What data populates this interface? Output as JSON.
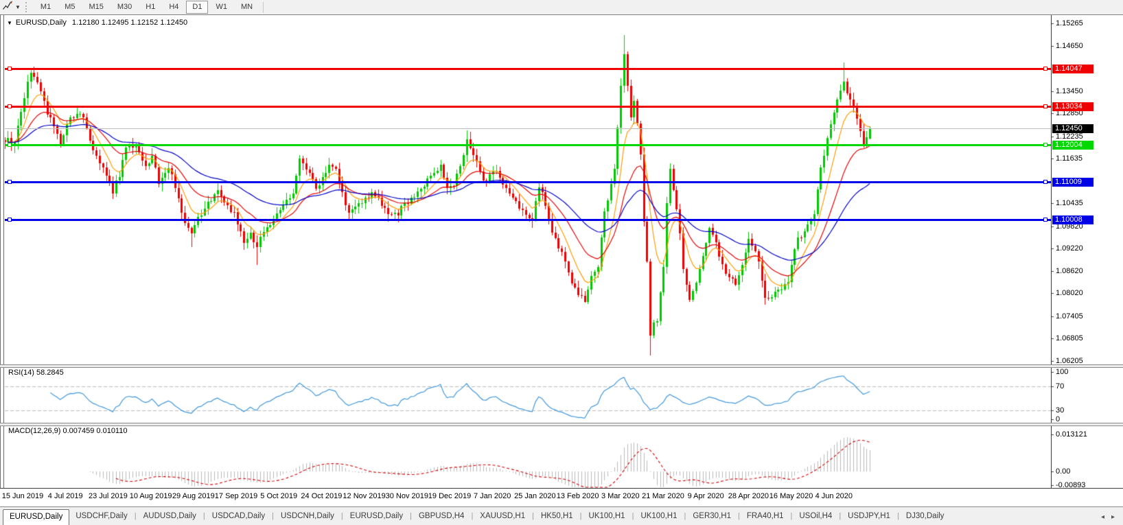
{
  "toolbar": {
    "timeframes": [
      "M1",
      "M5",
      "M15",
      "M30",
      "H1",
      "H4",
      "D1",
      "W1",
      "MN"
    ],
    "active_timeframe": "D1",
    "tool_icon": "drawing-cursor-tool"
  },
  "chart": {
    "title": "EURUSD,Daily",
    "ohlc_text": "1.12180 1.12495 1.12152 1.12450"
  },
  "rsi_panel": {
    "label": "RSI(14) 58.2845"
  },
  "macd_panel": {
    "label": "MACD(12,26,9) 0.007459 0.010110"
  },
  "tab_bar": {
    "tabs": [
      "EURUSD,Daily",
      "USDCHF,Daily",
      "AUDUSD,Daily",
      "USDCAD,Daily",
      "USDCNH,Daily",
      "EURUSD,Daily",
      "GBPUSD,H4",
      "XAUUSD,H1",
      "HK50,H1",
      "UK100,H1",
      "UK100,H1",
      "GER30,H1",
      "FRA40,H1",
      "USOil,H4",
      "USDJPY,H1",
      "DJ30,Daily"
    ],
    "active_index": 0,
    "scroll_left": "◂",
    "scroll_right": "▸"
  },
  "chart_data": {
    "type": "candlestick",
    "symbol": "EURUSD",
    "timeframe": "Daily",
    "last_candle": {
      "open": 1.1218,
      "high": 1.12495,
      "low": 1.12152,
      "close": 1.1245
    },
    "price_axis_ticks": [
      "1.15265",
      "1.14650",
      "1.13450",
      "1.12850",
      "1.12235",
      "1.11635",
      "1.10435",
      "1.09820",
      "1.09220",
      "1.08620",
      "1.08020",
      "1.07405",
      "1.06805",
      "1.06205"
    ],
    "visible_price_range": [
      1.06205,
      1.15265
    ],
    "horizontal_lines": [
      {
        "price": 1.14047,
        "label": "1.14047",
        "color": "#f00000"
      },
      {
        "price": 1.13034,
        "label": "1.13034",
        "color": "#f00000"
      },
      {
        "price": 1.12004,
        "label": "1.12004",
        "color": "#00d800"
      },
      {
        "price": 1.11009,
        "label": "1.11009",
        "color": "#0000e8"
      },
      {
        "price": 1.10008,
        "label": "1.10008",
        "color": "#0000e8"
      }
    ],
    "current_price": {
      "value": 1.1245,
      "label": "1.12450",
      "line_color": "#bdbdbd",
      "label_bg": "#000000"
    },
    "x_labels": [
      "15 Jun 2019",
      "4 Jul 2019",
      "23 Jul 2019",
      "10 Aug 2019",
      "29 Aug 2019",
      "17 Sep 2019",
      "5 Oct 2019",
      "24 Oct 2019",
      "12 Nov 2019",
      "30 Nov 2019",
      "19 Dec 2019",
      "7 Jan 2020",
      "25 Jan 2020",
      "13 Feb 2020",
      "3 Mar 2020",
      "21 Mar 2020",
      "9 Apr 2020",
      "28 Apr 2020",
      "16 May 2020",
      "4 Jun 2020"
    ],
    "candle_count": 265,
    "close_anchors": [
      [
        0,
        1.1207
      ],
      [
        1,
        1.122
      ],
      [
        2,
        1.1195
      ],
      [
        3,
        1.1215
      ],
      [
        5,
        1.129
      ],
      [
        7,
        1.1366
      ],
      [
        8,
        1.139
      ],
      [
        10,
        1.1373
      ],
      [
        11,
        1.135
      ],
      [
        13,
        1.1285
      ],
      [
        15,
        1.125
      ],
      [
        17,
        1.1207
      ],
      [
        20,
        1.127
      ],
      [
        22,
        1.1282
      ],
      [
        24,
        1.1275
      ],
      [
        26,
        1.121
      ],
      [
        29,
        1.1145
      ],
      [
        31,
        1.112
      ],
      [
        33,
        1.1075
      ],
      [
        35,
        1.112
      ],
      [
        37,
        1.12
      ],
      [
        40,
        1.1198
      ],
      [
        43,
        1.1139
      ],
      [
        45,
        1.117
      ],
      [
        47,
        1.11
      ],
      [
        50,
        1.1145
      ],
      [
        52,
        1.109
      ],
      [
        55,
        1.099
      ],
      [
        57,
        1.097
      ],
      [
        59,
        1.1
      ],
      [
        61,
        1.103
      ],
      [
        63,
        1.105
      ],
      [
        65,
        1.1073
      ],
      [
        67,
        1.104
      ],
      [
        70,
        1.1017
      ],
      [
        73,
        1.094
      ],
      [
        75,
        1.096
      ],
      [
        77,
        1.0932
      ],
      [
        80,
        1.098
      ],
      [
        82,
        1.1
      ],
      [
        85,
        1.104
      ],
      [
        88,
        1.107
      ],
      [
        90,
        1.117
      ],
      [
        91,
        1.1155
      ],
      [
        93,
        1.113
      ],
      [
        95,
        1.108
      ],
      [
        97,
        1.111
      ],
      [
        99,
        1.1152
      ],
      [
        101,
        1.113
      ],
      [
        103,
        1.107
      ],
      [
        105,
        1.1018
      ],
      [
        107,
        1.1035
      ],
      [
        108,
        1.104
      ],
      [
        110,
        1.1052
      ],
      [
        112,
        1.107
      ],
      [
        114,
        1.106
      ],
      [
        116,
        1.1025
      ],
      [
        117,
        1.101
      ],
      [
        119,
        1.1015
      ],
      [
        120,
        1.1018
      ],
      [
        122,
        1.104
      ],
      [
        125,
        1.106
      ],
      [
        127,
        1.108
      ],
      [
        130,
        1.112
      ],
      [
        132,
        1.1135
      ],
      [
        133,
        1.1145
      ],
      [
        135,
        1.1078
      ],
      [
        137,
        1.1095
      ],
      [
        138,
        1.112
      ],
      [
        140,
        1.118
      ],
      [
        141,
        1.1212
      ],
      [
        142,
        1.119
      ],
      [
        144,
        1.116
      ],
      [
        146,
        1.1103
      ],
      [
        148,
        1.1115
      ],
      [
        150,
        1.113
      ],
      [
        151,
        1.111
      ],
      [
        153,
        1.109
      ],
      [
        155,
        1.106
      ],
      [
        158,
        1.1025
      ],
      [
        160,
        1.101
      ],
      [
        161,
        1.1005
      ],
      [
        163,
        1.1093
      ],
      [
        164,
        1.108
      ],
      [
        166,
        1.1
      ],
      [
        168,
        1.0945
      ],
      [
        170,
        1.0915
      ],
      [
        173,
        1.083
      ],
      [
        175,
        1.08
      ],
      [
        177,
        1.0785
      ],
      [
        179,
        1.0845
      ],
      [
        181,
        1.088
      ],
      [
        183,
        1.1026
      ],
      [
        184,
        1.105
      ],
      [
        186,
        1.1135
      ],
      [
        188,
        1.136
      ],
      [
        189,
        1.1446
      ],
      [
        190,
        1.1365
      ],
      [
        191,
        1.127
      ],
      [
        192,
        1.132
      ],
      [
        194,
        1.118
      ],
      [
        195,
        1.1
      ],
      [
        196,
        1.088
      ],
      [
        197,
        1.0692
      ],
      [
        198,
        1.072
      ],
      [
        199,
        1.0725
      ],
      [
        200,
        1.08
      ],
      [
        201,
        1.088
      ],
      [
        202,
        1.105
      ],
      [
        203,
        1.114
      ],
      [
        204,
        1.108
      ],
      [
        205,
        1.103
      ],
      [
        206,
        1.0965
      ],
      [
        207,
        1.087
      ],
      [
        209,
        1.079
      ],
      [
        211,
        1.083
      ],
      [
        212,
        1.086
      ],
      [
        214,
        1.093
      ],
      [
        215,
        1.098
      ],
      [
        217,
        1.094
      ],
      [
        218,
        1.09
      ],
      [
        220,
        1.0858
      ],
      [
        222,
        1.084
      ],
      [
        223,
        1.082
      ],
      [
        225,
        1.088
      ],
      [
        227,
        1.0955
      ],
      [
        229,
        1.091
      ],
      [
        230,
        1.088
      ],
      [
        232,
        1.0783
      ],
      [
        234,
        1.0795
      ],
      [
        235,
        1.081
      ],
      [
        237,
        1.0805
      ],
      [
        239,
        1.084
      ],
      [
        240,
        1.088
      ],
      [
        242,
        1.095
      ],
      [
        244,
        1.0965
      ],
      [
        245,
        1.0983
      ],
      [
        247,
        1.1017
      ],
      [
        249,
        1.1134
      ],
      [
        251,
        1.122
      ],
      [
        253,
        1.1292
      ],
      [
        255,
        1.134
      ],
      [
        256,
        1.1374
      ],
      [
        257,
        1.134
      ],
      [
        258,
        1.1325
      ],
      [
        259,
        1.13
      ],
      [
        260,
        1.1264
      ],
      [
        261,
        1.1244
      ],
      [
        262,
        1.1206
      ],
      [
        263,
        1.1218
      ],
      [
        264,
        1.1245
      ]
    ],
    "key_extremes": [
      {
        "i": 8,
        "high": 1.1405
      },
      {
        "i": 57,
        "low": 1.0926
      },
      {
        "i": 77,
        "low": 1.0879
      },
      {
        "i": 141,
        "high": 1.124
      },
      {
        "i": 177,
        "low": 1.0778
      },
      {
        "i": 189,
        "high": 1.1495
      },
      {
        "i": 197,
        "low": 1.0636
      },
      {
        "i": 256,
        "high": 1.1422
      }
    ],
    "moving_averages": [
      {
        "type": "ema",
        "period": 8,
        "color": "#ff9c00"
      },
      {
        "type": "ema",
        "period": 20,
        "color": "#e60000"
      },
      {
        "type": "ema",
        "period": 45,
        "color": "#0000cc"
      }
    ],
    "indicators": [
      {
        "name": "RSI",
        "params": [
          14
        ],
        "last_value": 58.2845,
        "line_color": "#3e96dc",
        "levels": [
          70,
          30
        ],
        "axis_ticks": [
          "100",
          "70",
          "30",
          "0"
        ]
      },
      {
        "name": "MACD",
        "params": [
          12,
          26,
          9
        ],
        "last_values": [
          0.007459,
          0.01011
        ],
        "hist_color": "#b9b9b9",
        "signal_color": "#d40000",
        "axis_ticks": [
          "0.013121",
          "0.00",
          "-0.00893"
        ]
      }
    ],
    "colors": {
      "up": "#00c800",
      "down": "#ee0000"
    }
  }
}
